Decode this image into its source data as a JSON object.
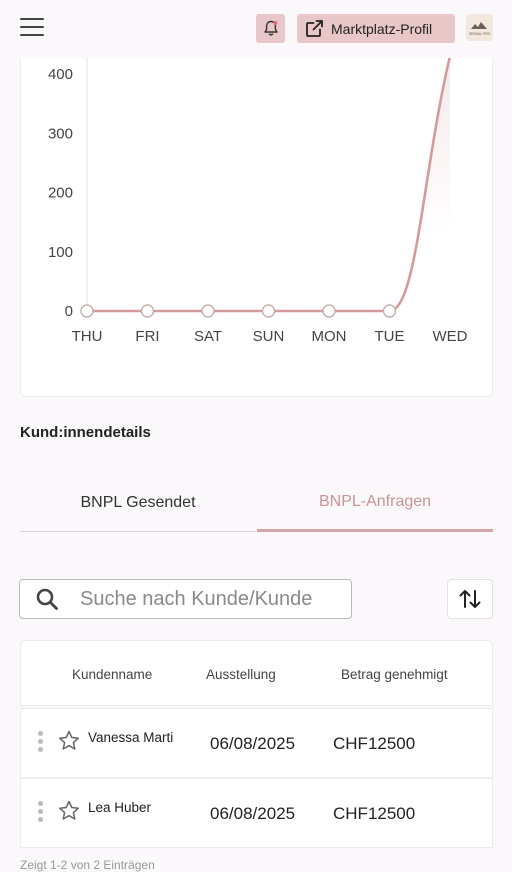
{
  "header": {
    "menu_icon": "hamburger-menu-icon",
    "notification_icon": "bell-icon",
    "profile_button_label": "Marktplatz-Profil",
    "profile_button_icon": "external-link-icon",
    "logo_text": "SEEMAL PRO"
  },
  "chart_data": {
    "type": "area",
    "categories": [
      "THU",
      "FRI",
      "SAT",
      "SUN",
      "MON",
      "TUE",
      "WED"
    ],
    "values": [
      0,
      0,
      0,
      0,
      0,
      0,
      430
    ],
    "y_ticks": [
      "0",
      "100",
      "200",
      "300",
      "400"
    ],
    "ylim": [
      0,
      400
    ],
    "line_color": "#d49a9c",
    "grid": false
  },
  "section_title": "Kund:innendetails",
  "tabs": [
    {
      "label": "BNPL Gesendet",
      "active": false
    },
    {
      "label": "BNPL-Anfragen",
      "active": true
    }
  ],
  "search": {
    "icon": "search-icon",
    "placeholder": "Suche nach Kunde/Kunde",
    "value": ""
  },
  "sort_icon": "sort-arrows-icon",
  "table": {
    "headers": [
      "Kundenname",
      "Ausstellung",
      "Betrag genehmigt"
    ],
    "rows": [
      {
        "name": "Vanessa Marti",
        "date": "06/08/2025",
        "amount": "CHF12500"
      },
      {
        "name": "Lea Huber",
        "date": "06/08/2025",
        "amount": "CHF12500"
      }
    ]
  },
  "footer_note": "Zeigt 1-2 von 2 Einträgen"
}
